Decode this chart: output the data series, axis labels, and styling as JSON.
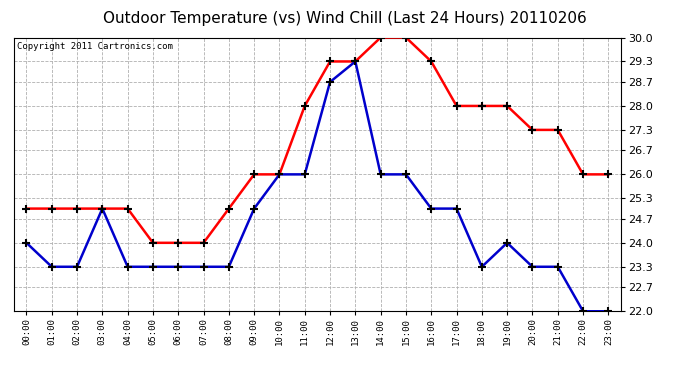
{
  "title": "Outdoor Temperature (vs) Wind Chill (Last 24 Hours) 20110206",
  "copyright": "Copyright 2011 Cartronics.com",
  "hours": [
    "00:00",
    "01:00",
    "02:00",
    "03:00",
    "04:00",
    "05:00",
    "06:00",
    "07:00",
    "08:00",
    "09:00",
    "10:00",
    "11:00",
    "12:00",
    "13:00",
    "14:00",
    "15:00",
    "16:00",
    "17:00",
    "18:00",
    "19:00",
    "20:00",
    "21:00",
    "22:00",
    "23:00"
  ],
  "red_temp": [
    25.0,
    25.0,
    25.0,
    25.0,
    25.0,
    24.0,
    24.0,
    24.0,
    25.0,
    26.0,
    26.0,
    28.0,
    29.3,
    29.3,
    30.0,
    30.0,
    29.3,
    28.0,
    28.0,
    28.0,
    27.3,
    27.3,
    26.0,
    26.0
  ],
  "blue_wc": [
    24.0,
    23.3,
    23.3,
    25.0,
    23.3,
    23.3,
    23.3,
    23.3,
    23.3,
    25.0,
    26.0,
    26.0,
    28.7,
    29.3,
    26.0,
    26.0,
    25.0,
    25.0,
    23.3,
    24.0,
    23.3,
    23.3,
    22.0,
    22.0
  ],
  "red_color": "#ff0000",
  "blue_color": "#0000cc",
  "bg_color": "#ffffff",
  "plot_bg": "#ffffff",
  "grid_color": "#b0b0b0",
  "ylim_min": 22.0,
  "ylim_max": 30.0,
  "yticks": [
    22.0,
    22.7,
    23.3,
    24.0,
    24.7,
    25.3,
    26.0,
    26.7,
    27.3,
    28.0,
    28.7,
    29.3,
    30.0
  ],
  "title_fontsize": 11,
  "copyright_fontsize": 6.5,
  "marker": "+",
  "linewidth": 1.8,
  "markersize": 6,
  "markeredgewidth": 1.5
}
